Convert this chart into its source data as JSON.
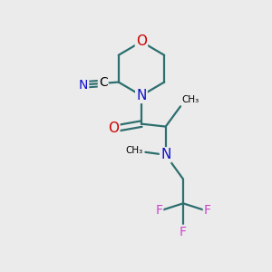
{
  "background_color": "#ebebeb",
  "atom_colors": {
    "C": "#000000",
    "N": "#1010cc",
    "O": "#cc0000",
    "F": "#cc44cc"
  },
  "bond_color": "#2d6e6e",
  "bond_lw": 1.6,
  "figsize": [
    3.0,
    3.0
  ],
  "dpi": 100
}
